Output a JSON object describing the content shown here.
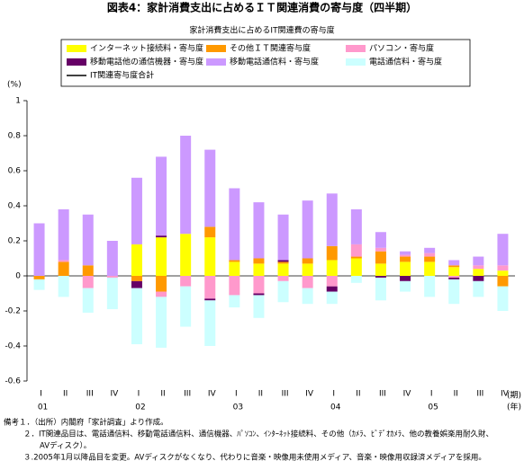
{
  "chart_data": {
    "type": "bar",
    "title": "図表4：家計消費支出に占めるＩＴ関連消費の寄与度（四半期）",
    "subtitle": "家計消費支出に占めるIT関連費の寄与度",
    "y_unit": "(%)",
    "x_unit": "(期)",
    "year_unit": "(年)",
    "stacked": true,
    "categories": [
      "I",
      "II",
      "III",
      "IV",
      "I",
      "II",
      "III",
      "IV",
      "I",
      "II",
      "III",
      "IV",
      "I",
      "II",
      "III",
      "IV",
      "I",
      "II",
      "III",
      "IV"
    ],
    "year_labels": [
      "01",
      "02",
      "03",
      "04",
      "05"
    ],
    "series": [
      {
        "name": "インターネット接続料・寄与度",
        "color": "#ffff00",
        "values": [
          0,
          0,
          0,
          0,
          0.18,
          0.22,
          0.24,
          0.22,
          0.08,
          0.07,
          0.07,
          0.07,
          0.09,
          0.1,
          0.07,
          0.08,
          0.08,
          0.05,
          0.04,
          0.03
        ]
      },
      {
        "name": "その他ＩＴ関連寄与度",
        "color": "#ff9900",
        "values": [
          -0.02,
          0.08,
          0.06,
          0,
          -0.03,
          -0.09,
          0,
          0.06,
          0.01,
          0.03,
          0.01,
          0.03,
          0.08,
          0.01,
          0.07,
          0.03,
          0.03,
          0.01,
          0,
          -0.06
        ]
      },
      {
        "name": "パソコン・寄与度",
        "color": "#ff99cc",
        "values": [
          0,
          0.01,
          -0.07,
          -0.01,
          0,
          -0.03,
          -0.06,
          -0.13,
          -0.11,
          -0.1,
          -0.03,
          -0.07,
          -0.06,
          0.07,
          0.02,
          0.01,
          0.02,
          -0.01,
          0.02,
          0.03
        ]
      },
      {
        "name": "移動電話他の通信機器・寄与度",
        "color": "#660066",
        "values": [
          0,
          0,
          0,
          0,
          -0.04,
          0.01,
          0,
          -0.01,
          0,
          -0.01,
          0.01,
          0,
          -0.03,
          0,
          -0.01,
          -0.03,
          0,
          -0.01,
          -0.03,
          0
        ]
      },
      {
        "name": "移動電話通信料・寄与度",
        "color": "#cc99ff",
        "values": [
          0.3,
          0.29,
          0.29,
          0.2,
          0.38,
          0.45,
          0.56,
          0.44,
          0.41,
          0.32,
          0.26,
          0.33,
          0.3,
          0.2,
          0.09,
          0.02,
          0.03,
          0.03,
          0.05,
          0.18
        ]
      },
      {
        "name": "電話通信料・寄与度",
        "color": "#ccffff",
        "values": [
          -0.06,
          -0.12,
          -0.14,
          -0.18,
          -0.32,
          -0.29,
          -0.23,
          -0.26,
          -0.07,
          -0.13,
          -0.12,
          -0.09,
          -0.07,
          -0.04,
          -0.13,
          -0.06,
          -0.12,
          -0.14,
          -0.09,
          -0.14
        ]
      },
      {
        "name": "IT関連寄与度合計",
        "color": "#000000",
        "line": true,
        "values": [
          null,
          null,
          null,
          null,
          null,
          null,
          null,
          null,
          null,
          null,
          null,
          null,
          null,
          null,
          null,
          null,
          null,
          null,
          null,
          null
        ]
      }
    ],
    "ylim": [
      -0.6,
      1
    ],
    "yticks": [
      -0.6,
      -0.4,
      -0.2,
      0,
      0.2,
      0.4,
      0.6,
      0.8,
      1
    ],
    "grid": false,
    "notes": [
      "備考１．（出所）内閣府「家計調査」より作成。",
      "２．IT関連品目は、電話通信料、移動電話通信料、通信機器、ﾊﾟｿｺﾝ、ｲﾝﾀｰﾈｯﾄ接続料、その他（ｶﾒﾗ、ﾋﾞﾃﾞｵｶﾒﾗ、他の教養娯楽用耐久財、",
      "AVディスク）。",
      "３.2005年1月以降品目を変更。AVディスクがなくなり、代わりに音楽・映像用未使用メディア、音楽・映像用収録済メディアを採用。"
    ]
  }
}
